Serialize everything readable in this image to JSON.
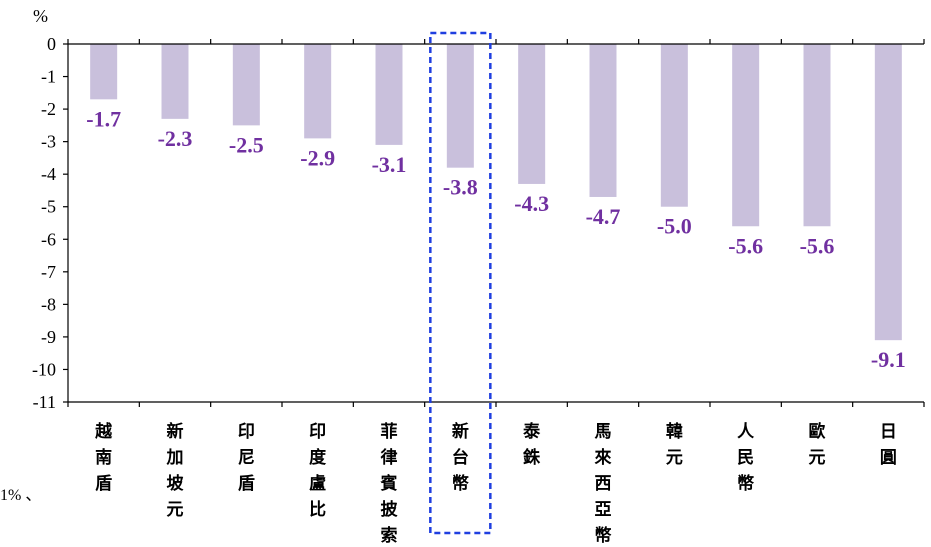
{
  "chart_data": {
    "type": "bar",
    "ylabel": "%",
    "ylim": [
      -11,
      0
    ],
    "yticks": [
      0,
      -1,
      -2,
      -3,
      -4,
      -5,
      -6,
      -7,
      -8,
      -9,
      -10,
      -11
    ],
    "categories": [
      "越南盾",
      "新加坡元",
      "印尼盾",
      "印度盧比",
      "菲律賓披索",
      "新台幣",
      "泰銖",
      "馬來西亞幣",
      "韓元",
      "人民幣",
      "歐元",
      "日圓"
    ],
    "values": [
      -1.7,
      -2.3,
      -2.5,
      -2.9,
      -3.1,
      -3.8,
      -4.3,
      -4.7,
      -5.0,
      -5.6,
      -5.6,
      -9.1
    ],
    "data_labels": [
      "-1.7",
      "-2.3",
      "-2.5",
      "-2.9",
      "-3.1",
      "-3.8",
      "-4.3",
      "-4.7",
      "-5.0",
      "-5.6",
      "-5.6",
      "-9.1"
    ],
    "highlight_category": "新台幣",
    "grid": false,
    "colors": {
      "bar": "#c9c0dc",
      "label": "#7030a0",
      "highlight_box": "#1f3fe0",
      "axis": "#000000"
    }
  },
  "side_note": "1% 、"
}
